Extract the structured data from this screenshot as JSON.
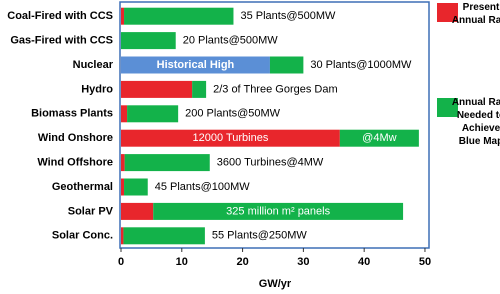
{
  "chart_data": {
    "type": "stacked-barh",
    "x_label": "GW/yr",
    "categories": [
      "Coal-Fired with CCS",
      "Gas-Fired with CCS",
      "Nuclear",
      "Hydro",
      "Biomass Plants",
      "Wind Onshore",
      "Wind Offshore",
      "Geothermal",
      "Solar PV",
      "Solar Conc."
    ],
    "series": [
      {
        "name": "Present Annual Rate",
        "color": "#e8262c",
        "values": [
          0.5,
          0,
          null,
          11.7,
          1,
          36,
          0.6,
          0.5,
          5.3,
          0.4
        ],
        "labels": [
          null,
          null,
          null,
          null,
          null,
          "12000 Turbines",
          null,
          null,
          null,
          null
        ]
      },
      {
        "name": "Historical High",
        "color": "#5b8fd6",
        "values": [
          null,
          null,
          24.5,
          null,
          null,
          null,
          null,
          null,
          null,
          null
        ]
      },
      {
        "name": "Annual Rate Needed to Achieve Blue Map",
        "color": "#13b24a",
        "values": [
          18,
          9,
          5.5,
          2.3,
          8.4,
          13,
          14,
          3.9,
          41.1,
          13.4
        ],
        "labels": [
          null,
          null,
          null,
          null,
          null,
          "@4Mw",
          null,
          null,
          "325 million m² panels",
          null
        ]
      }
    ],
    "end_labels": [
      "35 Plants@500MW",
      "20 Plants@500MW",
      "30 Plants@1000MW",
      "2/3 of Three Gorges Dam",
      "200 Plants@50MW",
      null,
      "3600 Turbines@4MW",
      "45 Plants@100MW",
      null,
      "55 Plants@250MW"
    ],
    "xlim": [
      0,
      50.5
    ],
    "xticks": [
      0,
      10,
      20,
      30,
      40,
      50
    ]
  }
}
